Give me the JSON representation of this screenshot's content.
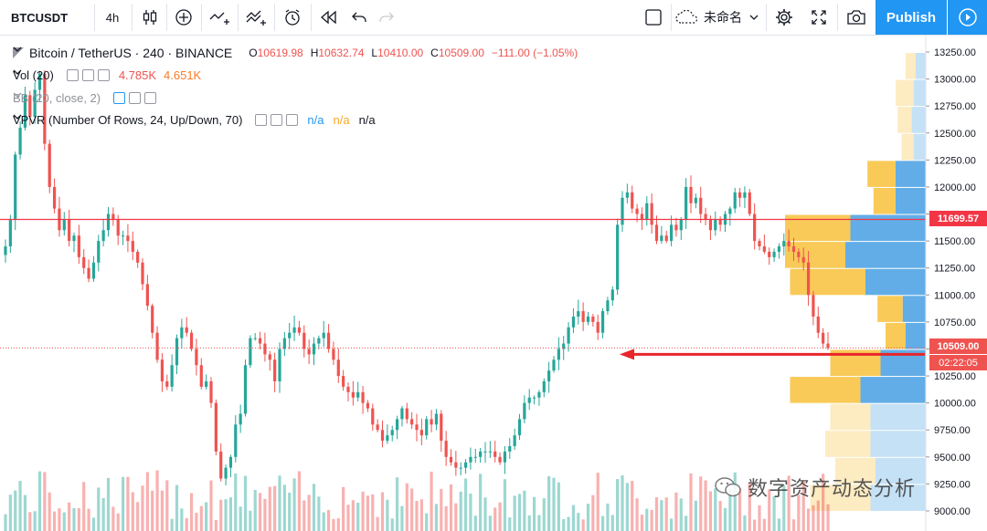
{
  "toolbar": {
    "symbol": "BTCUSDT",
    "interval": "4h",
    "layout_name": "未命名",
    "publish_label": "Publish",
    "icons": [
      "candles-icon",
      "add-indicator-icon",
      "compare-icon",
      "templates-icon",
      "alert-icon",
      "replay-icon",
      "undo-icon",
      "redo-icon",
      "layout-icon",
      "cloud-icon",
      "settings-icon",
      "fullscreen-icon",
      "camera-icon",
      "play-icon"
    ]
  },
  "legend": {
    "title": "Bitcoin / TetherUS · 240 · BINANCE",
    "o_label": "O",
    "o": "10619.98",
    "h_label": "H",
    "h": "10632.74",
    "l_label": "L",
    "l": "10410.00",
    "c_label": "C",
    "c": "10509.00",
    "change": "−111.00 (−1.05%)",
    "vol_label": "Vol (20)",
    "vol_1": "4.785K",
    "vol_2": "4.651K",
    "bb_label": "BB (20, close, 2)",
    "vpvr_label": "VPVR (Number Of Rows, 24, Up/Down, 70)",
    "vpvr_1": "n/a",
    "vpvr_2": "n/a",
    "vpvr_3": "n/a"
  },
  "axis": {
    "price_ticks": [
      "13250.00",
      "13000.00",
      "12750.00",
      "12500.00",
      "12250.00",
      "12000.00",
      "11750.00",
      "11500.00",
      "11250.00",
      "11000.00",
      "10750.00",
      "10500.00",
      "10250.00",
      "10000.00",
      "9750.00",
      "9500.00",
      "9250.00",
      "9000.00"
    ],
    "red_line_label": "11699.57",
    "last_price_label": "10509.00",
    "countdown_label": "02:22:05"
  },
  "watermark": "数字资产动态分析",
  "colors": {
    "up": "#26a69a",
    "down": "#ef5350",
    "accent": "#2196f3",
    "vp_up": "#f9c74f",
    "vp_down": "#5aa9e6"
  },
  "chart_data": {
    "type": "candlestick",
    "title": "Bitcoin / TetherUS · 240 · BINANCE",
    "ylim": [
      8880,
      13420
    ],
    "red_horizontal_line": 11699.57,
    "last_price": 10509.0,
    "closes": [
      11450,
      11700,
      12300,
      12550,
      12850,
      12650,
      12900,
      13050,
      12400,
      12000,
      11800,
      11600,
      11700,
      11500,
      11550,
      11350,
      11250,
      11150,
      11300,
      11500,
      11600,
      11750,
      11700,
      11550,
      11550,
      11500,
      11400,
      11300,
      11100,
      10900,
      10650,
      10400,
      10200,
      10150,
      10350,
      10600,
      10700,
      10650,
      10500,
      10350,
      10150,
      10200,
      10000,
      9550,
      9300,
      9400,
      9500,
      9800,
      9900,
      10350,
      10600,
      10600,
      10550,
      10450,
      10400,
      10200,
      10500,
      10600,
      10650,
      10700,
      10650,
      10500,
      10450,
      10550,
      10600,
      10650,
      10500,
      10400,
      10250,
      10150,
      10100,
      10050,
      10100,
      10000,
      9950,
      9800,
      9750,
      9650,
      9700,
      9750,
      9850,
      9950,
      9850,
      9800,
      9750,
      9700,
      9850,
      9800,
      9900,
      9650,
      9500,
      9450,
      9400,
      9400,
      9450,
      9500,
      9500,
      9550,
      9550,
      9550,
      9500,
      9450,
      9550,
      9600,
      9700,
      9850,
      10000,
      10050,
      10050,
      10100,
      10200,
      10300,
      10400,
      10500,
      10550,
      10700,
      10800,
      10850,
      10750,
      10800,
      10750,
      10650,
      10850,
      10950,
      11050,
      11650,
      11900,
      11950,
      11800,
      11750,
      11700,
      11850,
      11650,
      11500,
      11550,
      11500,
      11650,
      11600,
      11700,
      12000,
      11850,
      11900,
      11750,
      11700,
      11600,
      11700,
      11650,
      11750,
      11800,
      11950,
      11900,
      11950,
      11750,
      11500,
      11450,
      11400,
      11350,
      11400,
      11450,
      11500,
      11450,
      11400,
      11350,
      11300,
      11000,
      10800,
      10650,
      10550,
      10509
    ],
    "volume_profile": [
      {
        "price_low": 13000,
        "price_high": 13250,
        "up": 10,
        "down": 10
      },
      {
        "price_low": 12750,
        "price_high": 13000,
        "up": 18,
        "down": 12
      },
      {
        "price_low": 12500,
        "price_high": 12750,
        "up": 14,
        "down": 14
      },
      {
        "price_low": 12250,
        "price_high": 12500,
        "up": 12,
        "down": 12
      },
      {
        "price_low": 12000,
        "price_high": 12250,
        "up": 28,
        "down": 30
      },
      {
        "price_low": 11750,
        "price_high": 12000,
        "up": 22,
        "down": 30
      },
      {
        "price_low": 11500,
        "price_high": 11750,
        "up": 65,
        "down": 75
      },
      {
        "price_low": 11250,
        "price_high": 11500,
        "up": 60,
        "down": 80
      },
      {
        "price_low": 11000,
        "price_high": 11250,
        "up": 75,
        "down": 60
      },
      {
        "price_low": 10750,
        "price_high": 11000,
        "up": 25,
        "down": 23
      },
      {
        "price_low": 10500,
        "price_high": 10750,
        "up": 20,
        "down": 20
      },
      {
        "price_low": 10250,
        "price_high": 10500,
        "up": 50,
        "down": 45
      },
      {
        "price_low": 10000,
        "price_high": 10250,
        "up": 70,
        "down": 65
      },
      {
        "price_low": 9750,
        "price_high": 10000,
        "up": 40,
        "down": 55
      },
      {
        "price_low": 9500,
        "price_high": 9750,
        "up": 45,
        "down": 55
      },
      {
        "price_low": 9250,
        "price_high": 9500,
        "up": 40,
        "down": 50
      },
      {
        "price_low": 9000,
        "price_high": 9250,
        "up": 60,
        "down": 55
      }
    ]
  }
}
